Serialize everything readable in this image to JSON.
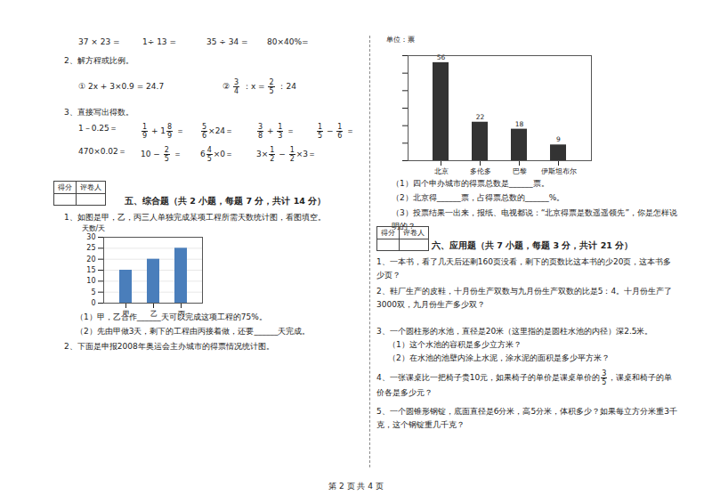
{
  "calc_top": [
    "37 × 23 =",
    "1÷ 13 =",
    "35 ÷ 34 =",
    "80×40%="
  ],
  "q2_title": "2、解方程或比例。",
  "q2_items": [
    [
      "① 2x + 3×0.9 = 24.7"
    ],
    [
      "② ",
      {
        "n": "3",
        "d": "4"
      },
      " ：x = ",
      {
        "n": "2",
        "d": "5"
      },
      " ：24"
    ]
  ],
  "q3_title": "3、直接写出得数。",
  "q3_rows": [
    [
      [
        "1－0.25＝"
      ],
      [
        {
          "n": "1",
          "d": "9"
        },
        " + 1",
        {
          "n": "8",
          "d": "9"
        },
        " ＝"
      ],
      [
        {
          "n": "5",
          "d": "6"
        },
        "×24＝"
      ],
      [
        {
          "n": "3",
          "d": "8"
        },
        " + ",
        {
          "n": "1",
          "d": "3"
        },
        " ＝"
      ],
      [
        {
          "n": "1",
          "d": "5"
        },
        " − ",
        {
          "n": "1",
          "d": "6"
        },
        " ＝"
      ]
    ],
    [
      [
        "470×0.02＝"
      ],
      [
        "10 − ",
        {
          "n": "2",
          "d": "5"
        },
        " ＝"
      ],
      [
        "6",
        {
          "n": "4",
          "d": "5"
        },
        "×0＝"
      ],
      [
        "3×",
        {
          "n": "1",
          "d": "2"
        },
        " − ",
        {
          "n": "1",
          "d": "2"
        },
        "×3＝"
      ]
    ]
  ],
  "score_box": [
    "得分",
    "评卷人"
  ],
  "section5": "五、综合题（共 2 小题，每题 7 分，共计 14 分）",
  "s5_q1": "1、如图是甲，乙，丙三人单独完成某项工程所需天数统计图，看图填空。",
  "s5_q1_sub": [
    "（1）甲，乙合作______天可以完成这项工程的75%。",
    "（2）先由甲做3天，剩下的工程由丙接着做，还要______天完成。"
  ],
  "s5_q2": "2、下面是申报2008年奥运会主办城市的得票情况统计图。",
  "s5_q2_sub": [
    "（1）四个申办城市的得票总数是______票。",
    "（2）北京得______票，占得票总数的______%。",
    "（3）投票结果一出来，报纸、电视都说：“北京得票是数遥遥领先”，你是怎样说明的？"
  ],
  "section6": "六、应用题（共 7 小题，每题 3 分，共计 21 分）",
  "s6_items": [
    [
      [
        "1、一本书，看了几天后还剩160页没看，剩下的页数比这本书的少20页，这本书多少页？"
      ]
    ],
    [
      [
        "2、鞋厂生产的皮鞋，十月份生产双数与九月份生产双数的比是5：4。十月份生产了3000双，九月份生产多少双？"
      ]
    ],
    [
      [
        "3、一个圆柱形的水池，直径是20米（这里指的是圆柱水池的内径）深2.5米。"
      ],
      [
        "（1）这个水池的容积是多少立方米？"
      ],
      [
        "（2）在水池的池壁内涂上水泥，涂水泥的面积是多少平方米？"
      ]
    ],
    [
      [
        "4、一张课桌比一把椅子贵10元，如果椅子的单价是课桌单价的",
        {
          "n": "3",
          "d": "5"
        },
        "，课桌和椅子的单价各是多少元？"
      ]
    ],
    [
      [
        "5、一个圆锥形钢锭，底面直径是6分米，高5分米，体积多少？如果每立方分米重3千克，这个钢锭重几千克？"
      ]
    ]
  ],
  "footer": "第 2 页 共 4 页",
  "chart_data": [
    {
      "type": "bar",
      "y_label": "天数/天",
      "categories": [
        "甲",
        "乙",
        "丙"
      ],
      "values": [
        15,
        20,
        25
      ],
      "color": "#4a7ebb",
      "ylim": [
        0,
        30
      ],
      "yticks": [
        0,
        5,
        10,
        15,
        20,
        25,
        30
      ],
      "grid": true
    },
    {
      "type": "bar",
      "y_label": "单位：票",
      "categories": [
        "北京",
        "多伦多",
        "巴黎",
        "伊斯坦布尔"
      ],
      "values": [
        56,
        22,
        18,
        9
      ],
      "color": "#333333",
      "ylim": [
        0,
        60
      ],
      "yticks": [
        0,
        10,
        20,
        30,
        40,
        50,
        60
      ],
      "data_labels": true,
      "tick_labels": "x"
    }
  ]
}
